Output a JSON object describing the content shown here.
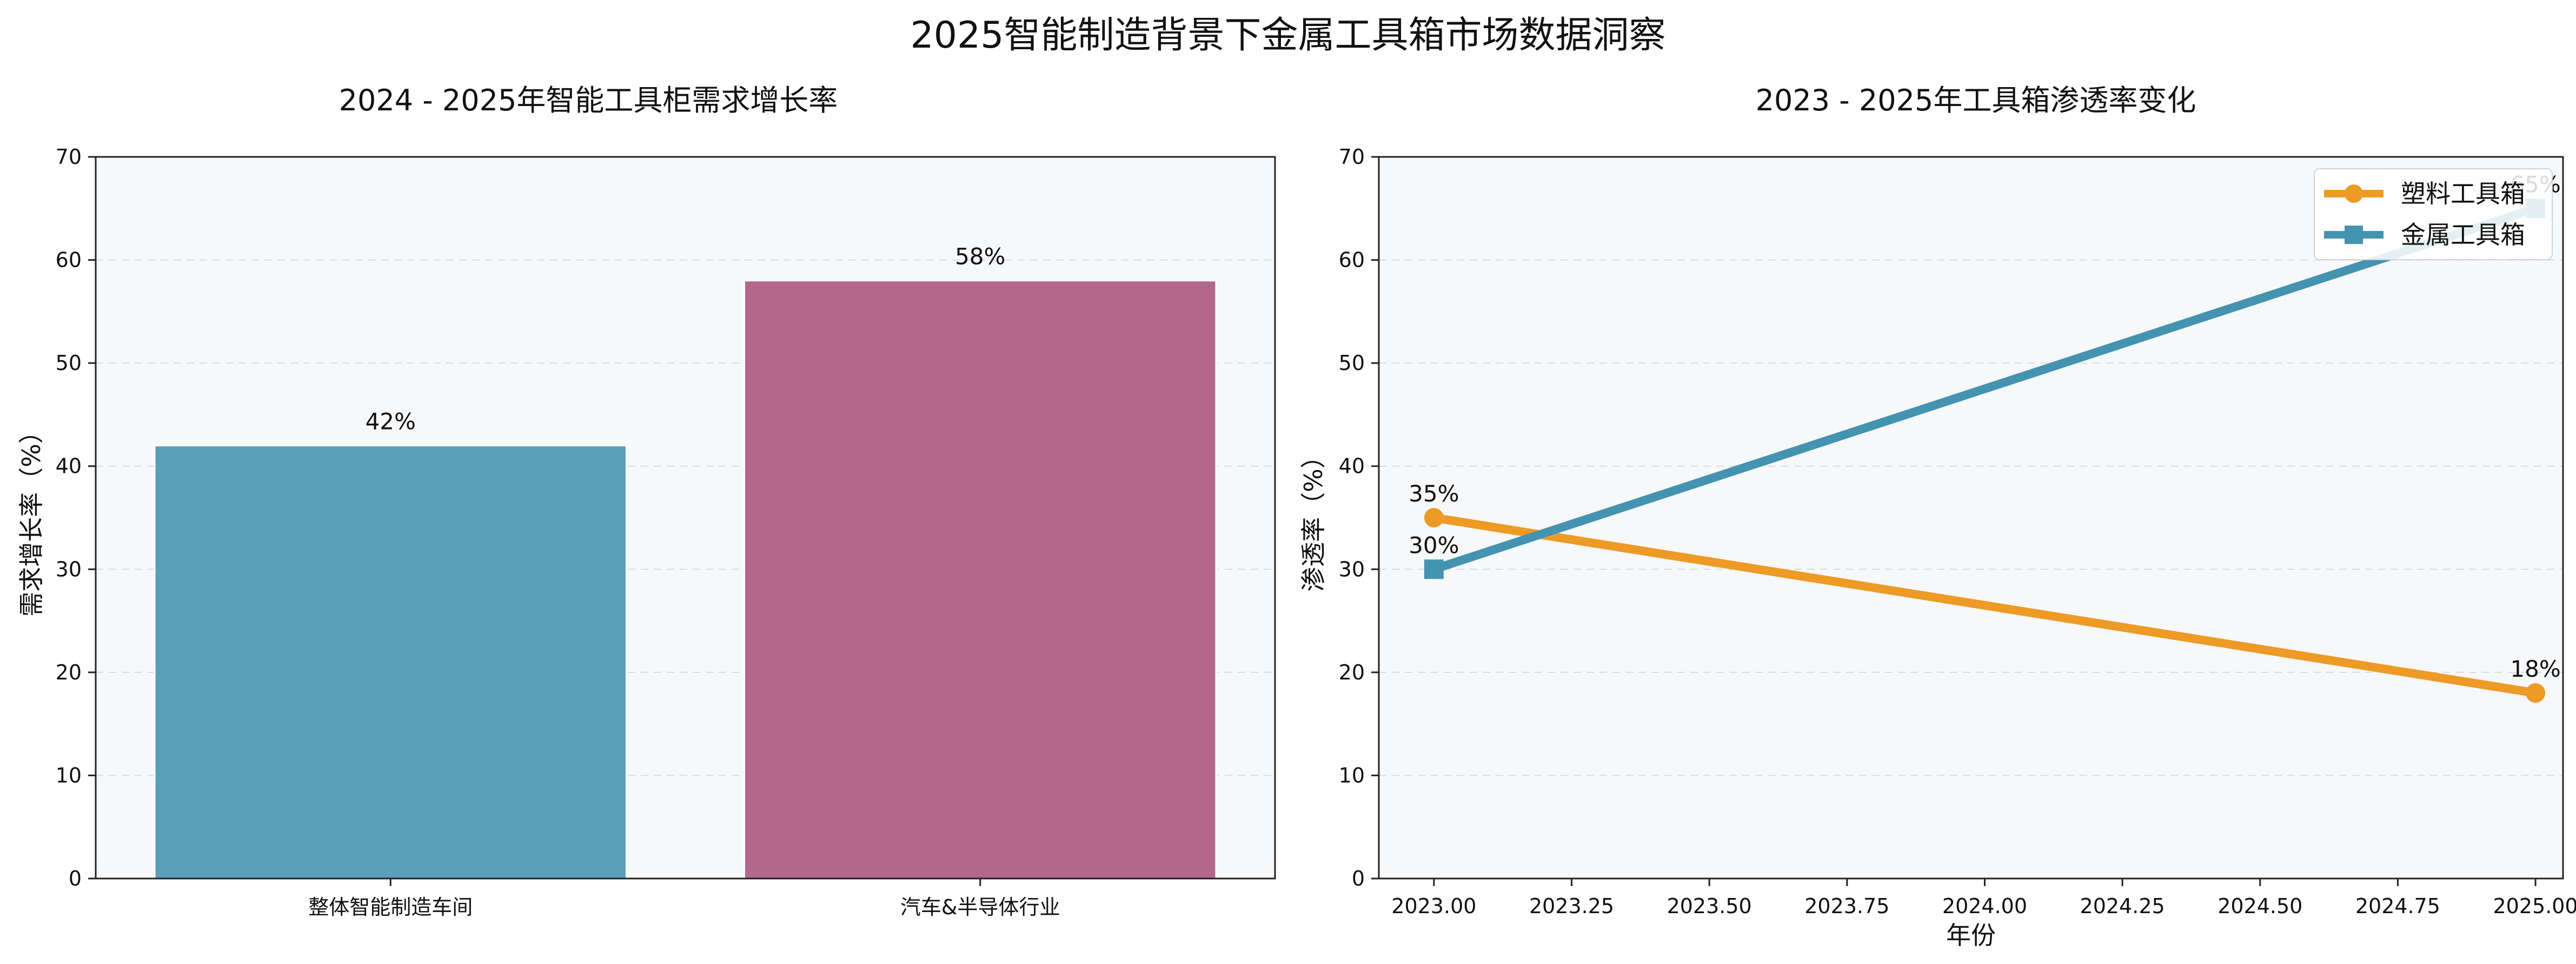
{
  "figure": {
    "title": "2025智能制造背景下金属工具箱市场数据洞察"
  },
  "chart_data": [
    {
      "type": "bar",
      "title": "2024 - 2025年智能工具柜需求增长率",
      "xlabel": "",
      "ylabel": "需求增长率（%）",
      "ylim": [
        0,
        70
      ],
      "yticks": [
        0,
        10,
        20,
        30,
        40,
        50,
        60,
        70
      ],
      "categories": [
        "整体智能制造车间",
        "汽车&半导体行业"
      ],
      "values": [
        42,
        58
      ],
      "value_labels": [
        "42%",
        "58%"
      ],
      "colors": [
        "#579cb9",
        "#b1648b"
      ],
      "grid": true
    },
    {
      "type": "line",
      "title": "2023 - 2025年工具箱渗透率变化",
      "xlabel": "年份",
      "ylabel": "渗透率（%）",
      "xlim": [
        2022.9,
        2025.05
      ],
      "ylim": [
        0,
        70
      ],
      "xticks": [
        2023.0,
        2023.25,
        2023.5,
        2023.75,
        2024.0,
        2024.25,
        2024.5,
        2024.75,
        2025.0
      ],
      "xtick_labels": [
        "2023.00",
        "2023.25",
        "2023.50",
        "2023.75",
        "2024.00",
        "2024.25",
        "2024.50",
        "2024.75",
        "2025.00"
      ],
      "yticks": [
        0,
        10,
        20,
        30,
        40,
        50,
        60,
        70
      ],
      "legend_position": "top-right",
      "grid": true,
      "series": [
        {
          "name": "塑料工具箱",
          "x": [
            2023,
            2025
          ],
          "values": [
            35,
            18
          ],
          "point_labels": [
            "35%",
            "18%"
          ],
          "color": "#ee9a26",
          "marker": "circle"
        },
        {
          "name": "金属工具箱",
          "x": [
            2023,
            2025
          ],
          "values": [
            30,
            65
          ],
          "point_labels": [
            "30%",
            "65%"
          ],
          "color": "#4493b0",
          "marker": "square"
        }
      ]
    }
  ]
}
